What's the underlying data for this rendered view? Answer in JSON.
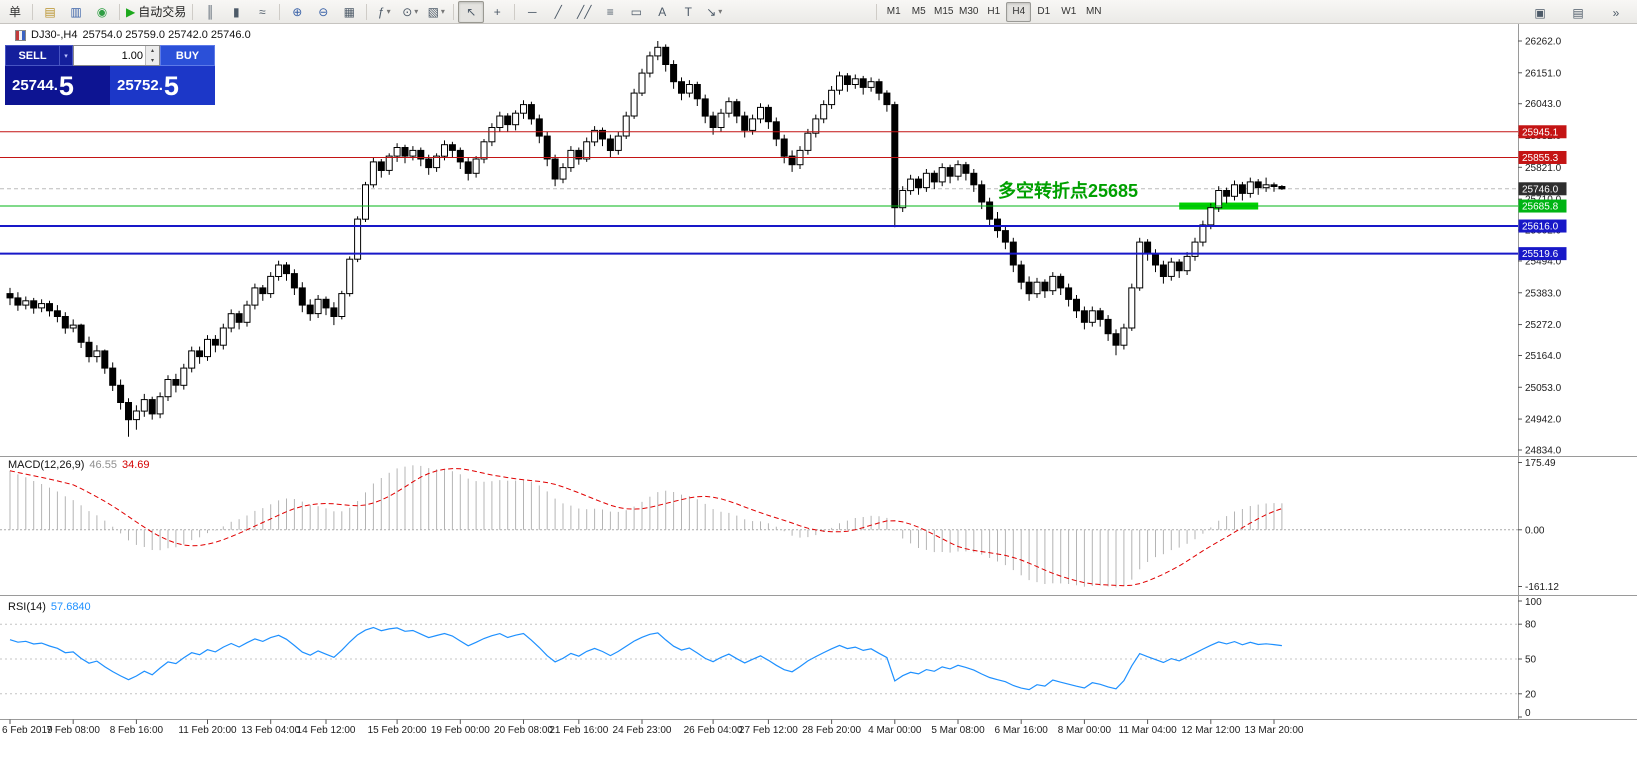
{
  "toolbar": {
    "groups": [
      [
        {
          "name": "new-order",
          "glyph": "单",
          "c": "#333333"
        }
      ],
      [
        {
          "name": "charts",
          "glyph": "▤",
          "c": "#b8912a"
        },
        {
          "name": "profiles",
          "glyph": "▥",
          "c": "#3a62a8"
        },
        {
          "name": "market-watch",
          "glyph": "◉",
          "c": "#2f9e44"
        }
      ],
      [
        {
          "name": "algo-trading",
          "glyph": "▶",
          "c": "#1ca81c",
          "label": "自动交易"
        }
      ],
      [
        {
          "name": "bar-chart",
          "glyph": "║"
        },
        {
          "name": "candlestick-chart",
          "glyph": "▮"
        },
        {
          "name": "line-chart",
          "glyph": "≈"
        }
      ],
      [
        {
          "name": "zoom-in",
          "glyph": "⊕",
          "c": "#3a62a8"
        },
        {
          "name": "zoom-out",
          "glyph": "⊖",
          "c": "#3a62a8"
        },
        {
          "name": "tile-windows",
          "glyph": "▦"
        }
      ],
      [
        {
          "name": "indicators",
          "glyph": "ƒ",
          "dd": true
        },
        {
          "name": "periods",
          "glyph": "⊙",
          "dd": true
        },
        {
          "name": "templates",
          "glyph": "▧",
          "dd": true
        }
      ],
      [
        {
          "name": "cursor",
          "glyph": "↖",
          "active": true
        },
        {
          "name": "crosshair",
          "glyph": "+"
        }
      ],
      [
        {
          "name": "horizontal-line",
          "glyph": "─"
        },
        {
          "name": "trendline",
          "glyph": "╱"
        },
        {
          "name": "equidistant-channel",
          "glyph": "╱╱"
        },
        {
          "name": "fibonacci",
          "glyph": "≡"
        },
        {
          "name": "shapes",
          "glyph": "▭"
        },
        {
          "name": "text",
          "glyph": "A"
        },
        {
          "name": "text-label",
          "glyph": "T"
        },
        {
          "name": "arrows",
          "glyph": "↘",
          "dd": true
        }
      ]
    ],
    "timeframes": [
      "M1",
      "M5",
      "M15",
      "M30",
      "H1",
      "H4",
      "D1",
      "W1",
      "MN"
    ],
    "active_timeframe": "H4",
    "window_controls": [
      {
        "name": "cascade-windows",
        "glyph": "▣"
      },
      {
        "name": "tile-horizontal",
        "glyph": "▤"
      },
      {
        "name": "toolbar-overflow",
        "glyph": "»"
      }
    ]
  },
  "chart": {
    "symbol": "DJ30-,H4",
    "ohlc_text": "25754.0 25759.0 25742.0 25746.0"
  },
  "one_click": {
    "sell_label": "SELL",
    "buy_label": "BUY",
    "volume": "1.00",
    "sell_price": "25744.",
    "sell_price_frac": "5",
    "buy_price": "25752.",
    "buy_price_frac": "5"
  },
  "annotation": {
    "text": "多空转折点25685",
    "color": "#00A000",
    "bar": {
      "from_bar": 148,
      "to_bar": 158,
      "price": 25685.8,
      "height": 7,
      "color": "#00D200"
    }
  },
  "levels": [
    {
      "label": "25945.1",
      "price": 25945.1,
      "color": "#C41414",
      "width": 1
    },
    {
      "label": "25855.3",
      "price": 25855.3,
      "color": "#C41414",
      "width": 1
    },
    {
      "label": "25685.8",
      "price": 25685.8,
      "color": "#00B414",
      "width": 1
    },
    {
      "label": "25616.0",
      "price": 25616.0,
      "color": "#1818C8",
      "width": 2
    },
    {
      "label": "25519.6",
      "price": 25519.6,
      "color": "#1818C8",
      "width": 2
    }
  ],
  "current_price": {
    "label": "25746.0",
    "value": 25746.0,
    "box_color": "#2e2e2e"
  },
  "price_scale": {
    "ticks": [
      "26262.0",
      "26151.0",
      "26043.0",
      "25932.0",
      "25821.0",
      "25710.0",
      "25602.0",
      "25494.0",
      "25383.0",
      "25272.0",
      "25164.0",
      "25053.0",
      "24942.0",
      "24834.0"
    ]
  },
  "chart_data": {
    "type": "candlestick",
    "symbol": "DJ30",
    "period": "H4",
    "title": "DJ30-,H4 25754.0 25759.0 25742.0 25746.0",
    "y_range": [
      24834,
      26262
    ],
    "candles": [
      [
        25380,
        25400,
        25340,
        25365
      ],
      [
        25365,
        25385,
        25320,
        25340
      ],
      [
        25340,
        25370,
        25325,
        25355
      ],
      [
        25355,
        25365,
        25310,
        25330
      ],
      [
        25330,
        25360,
        25315,
        25345
      ],
      [
        25345,
        25355,
        25300,
        25320
      ],
      [
        25320,
        25340,
        25280,
        25300
      ],
      [
        25300,
        25315,
        25240,
        25260
      ],
      [
        25260,
        25290,
        25245,
        25270
      ],
      [
        25270,
        25275,
        25190,
        25210
      ],
      [
        25210,
        25230,
        25140,
        25160
      ],
      [
        25160,
        25200,
        25140,
        25180
      ],
      [
        25180,
        25185,
        25100,
        25120
      ],
      [
        25120,
        25140,
        25040,
        25060
      ],
      [
        25060,
        25080,
        24975,
        25000
      ],
      [
        25000,
        25015,
        24880,
        24940
      ],
      [
        24940,
        24990,
        24905,
        24970
      ],
      [
        24970,
        25030,
        24950,
        25010
      ],
      [
        25010,
        25020,
        24940,
        24960
      ],
      [
        24960,
        25035,
        24945,
        25020
      ],
      [
        25020,
        25095,
        25005,
        25080
      ],
      [
        25080,
        25100,
        25035,
        25060
      ],
      [
        25060,
        25135,
        25045,
        25120
      ],
      [
        25120,
        25195,
        25105,
        25180
      ],
      [
        25180,
        25195,
        25135,
        25160
      ],
      [
        25160,
        25235,
        25145,
        25220
      ],
      [
        25220,
        25235,
        25175,
        25200
      ],
      [
        25200,
        25275,
        25185,
        25260
      ],
      [
        25260,
        25325,
        25245,
        25310
      ],
      [
        25310,
        25320,
        25255,
        25280
      ],
      [
        25280,
        25355,
        25265,
        25340
      ],
      [
        25340,
        25415,
        25325,
        25400
      ],
      [
        25400,
        25410,
        25355,
        25380
      ],
      [
        25380,
        25455,
        25365,
        25440
      ],
      [
        25440,
        25495,
        25425,
        25480
      ],
      [
        25480,
        25490,
        25425,
        25450
      ],
      [
        25450,
        25465,
        25375,
        25400
      ],
      [
        25400,
        25420,
        25315,
        25340
      ],
      [
        25340,
        25360,
        25285,
        25310
      ],
      [
        25310,
        25375,
        25295,
        25360
      ],
      [
        25360,
        25370,
        25305,
        25330
      ],
      [
        25330,
        25350,
        25270,
        25300
      ],
      [
        25300,
        25390,
        25290,
        25380
      ],
      [
        25380,
        25510,
        25370,
        25500
      ],
      [
        25500,
        25650,
        25490,
        25640
      ],
      [
        25640,
        25770,
        25630,
        25760
      ],
      [
        25760,
        25855,
        25750,
        25840
      ],
      [
        25840,
        25850,
        25785,
        25810
      ],
      [
        25810,
        25870,
        25795,
        25860
      ],
      [
        25860,
        25905,
        25840,
        25890
      ],
      [
        25890,
        25900,
        25835,
        25860
      ],
      [
        25860,
        25895,
        25845,
        25880
      ],
      [
        25880,
        25890,
        25825,
        25850
      ],
      [
        25850,
        25865,
        25795,
        25820
      ],
      [
        25820,
        25870,
        25805,
        25860
      ],
      [
        25860,
        25915,
        25845,
        25900
      ],
      [
        25900,
        25910,
        25855,
        25880
      ],
      [
        25880,
        25890,
        25815,
        25840
      ],
      [
        25840,
        25855,
        25775,
        25800
      ],
      [
        25800,
        25860,
        25785,
        25850
      ],
      [
        25850,
        25920,
        25835,
        25910
      ],
      [
        25910,
        25975,
        25895,
        25960
      ],
      [
        25960,
        26015,
        25945,
        26000
      ],
      [
        26000,
        26010,
        25945,
        25970
      ],
      [
        25970,
        26020,
        25950,
        26010
      ],
      [
        26010,
        26055,
        25990,
        26040
      ],
      [
        26040,
        26050,
        25970,
        25990
      ],
      [
        25990,
        26005,
        25905,
        25930
      ],
      [
        25930,
        25945,
        25825,
        25850
      ],
      [
        25850,
        25865,
        25755,
        25780
      ],
      [
        25780,
        25835,
        25765,
        25820
      ],
      [
        25820,
        25895,
        25805,
        25880
      ],
      [
        25880,
        25890,
        25830,
        25850
      ],
      [
        25850,
        25925,
        25840,
        25910
      ],
      [
        25910,
        25965,
        25895,
        25950
      ],
      [
        25950,
        25960,
        25895,
        25920
      ],
      [
        25920,
        25935,
        25855,
        25880
      ],
      [
        25880,
        25945,
        25865,
        25930
      ],
      [
        25930,
        26015,
        25920,
        26000
      ],
      [
        26000,
        26095,
        25990,
        26080
      ],
      [
        26080,
        26165,
        26070,
        26150
      ],
      [
        26150,
        26225,
        26135,
        26210
      ],
      [
        26210,
        26262,
        26195,
        26240
      ],
      [
        26240,
        26250,
        26155,
        26180
      ],
      [
        26180,
        26195,
        26095,
        26120
      ],
      [
        26120,
        26135,
        26055,
        26080
      ],
      [
        26080,
        26125,
        26065,
        26110
      ],
      [
        26110,
        26120,
        26035,
        26060
      ],
      [
        26060,
        26075,
        25975,
        26000
      ],
      [
        26000,
        26015,
        25935,
        25960
      ],
      [
        25960,
        26025,
        25945,
        26010
      ],
      [
        26010,
        26065,
        25995,
        26050
      ],
      [
        26050,
        26060,
        25975,
        26000
      ],
      [
        26000,
        26015,
        25925,
        25950
      ],
      [
        25950,
        26005,
        25935,
        25990
      ],
      [
        25990,
        26045,
        25975,
        26030
      ],
      [
        26030,
        26040,
        25955,
        25980
      ],
      [
        25980,
        25995,
        25895,
        25920
      ],
      [
        25920,
        25935,
        25835,
        25860
      ],
      [
        25860,
        25880,
        25805,
        25830
      ],
      [
        25830,
        25895,
        25815,
        25880
      ],
      [
        25880,
        25955,
        25865,
        25940
      ],
      [
        25940,
        26005,
        25925,
        25990
      ],
      [
        25990,
        26055,
        25975,
        26040
      ],
      [
        26040,
        26105,
        26025,
        26090
      ],
      [
        26090,
        26155,
        26075,
        26140
      ],
      [
        26140,
        26150,
        26085,
        26110
      ],
      [
        26110,
        26145,
        26095,
        26130
      ],
      [
        26130,
        26140,
        26075,
        26100
      ],
      [
        26100,
        26135,
        26085,
        26120
      ],
      [
        26120,
        26130,
        26055,
        26080
      ],
      [
        26080,
        26090,
        26015,
        26040
      ],
      [
        26040,
        26050,
        25612,
        25680
      ],
      [
        25680,
        25755,
        25665,
        25740
      ],
      [
        25740,
        25795,
        25725,
        25780
      ],
      [
        25780,
        25790,
        25725,
        25750
      ],
      [
        25750,
        25815,
        25735,
        25800
      ],
      [
        25800,
        25810,
        25745,
        25770
      ],
      [
        25770,
        25835,
        25755,
        25820
      ],
      [
        25820,
        25830,
        25765,
        25790
      ],
      [
        25790,
        25845,
        25775,
        25830
      ],
      [
        25830,
        25840,
        25775,
        25800
      ],
      [
        25800,
        25815,
        25735,
        25760
      ],
      [
        25760,
        25775,
        25675,
        25700
      ],
      [
        25700,
        25715,
        25615,
        25640
      ],
      [
        25640,
        25665,
        25575,
        25600
      ],
      [
        25600,
        25615,
        25535,
        25560
      ],
      [
        25560,
        25575,
        25455,
        25480
      ],
      [
        25480,
        25495,
        25395,
        25420
      ],
      [
        25420,
        25440,
        25355,
        25380
      ],
      [
        25380,
        25435,
        25365,
        25420
      ],
      [
        25420,
        25430,
        25365,
        25390
      ],
      [
        25390,
        25455,
        25375,
        25440
      ],
      [
        25440,
        25450,
        25375,
        25400
      ],
      [
        25400,
        25415,
        25335,
        25360
      ],
      [
        25360,
        25375,
        25295,
        25320
      ],
      [
        25320,
        25335,
        25255,
        25280
      ],
      [
        25280,
        25335,
        25265,
        25320
      ],
      [
        25320,
        25330,
        25265,
        25290
      ],
      [
        25290,
        25305,
        25215,
        25240
      ],
      [
        25240,
        25255,
        25165,
        25200
      ],
      [
        25200,
        25275,
        25185,
        25260
      ],
      [
        25260,
        25415,
        25250,
        25400
      ],
      [
        25400,
        25575,
        25390,
        25560
      ],
      [
        25560,
        25570,
        25495,
        25520
      ],
      [
        25520,
        25535,
        25455,
        25480
      ],
      [
        25480,
        25495,
        25415,
        25440
      ],
      [
        25440,
        25505,
        25425,
        25490
      ],
      [
        25490,
        25500,
        25435,
        25460
      ],
      [
        25460,
        25525,
        25445,
        25510
      ],
      [
        25510,
        25575,
        25495,
        25560
      ],
      [
        25560,
        25635,
        25545,
        25620
      ],
      [
        25620,
        25695,
        25605,
        25680
      ],
      [
        25680,
        25755,
        25665,
        25740
      ],
      [
        25740,
        25750,
        25695,
        25720
      ],
      [
        25720,
        25775,
        25705,
        25760
      ],
      [
        25760,
        25770,
        25705,
        25730
      ],
      [
        25730,
        25785,
        25715,
        25770
      ],
      [
        25770,
        25780,
        25725,
        25750
      ],
      [
        25750,
        25785,
        25735,
        25760
      ],
      [
        25760,
        25768,
        25736,
        25754
      ],
      [
        25754,
        25759,
        25742,
        25746
      ]
    ],
    "x_labels": [
      {
        "text": "6 Feb 2019",
        "bar": 0
      },
      {
        "text": "7 Feb 08:00",
        "bar": 8
      },
      {
        "text": "8 Feb 16:00",
        "bar": 16
      },
      {
        "text": "11 Feb 20:00",
        "bar": 25
      },
      {
        "text": "13 Feb 04:00",
        "bar": 33
      },
      {
        "text": "14 Feb 12:00",
        "bar": 40
      },
      {
        "text": "15 Feb 20:00",
        "bar": 49
      },
      {
        "text": "19 Feb 00:00",
        "bar": 57
      },
      {
        "text": "20 Feb 08:00",
        "bar": 65
      },
      {
        "text": "21 Feb 16:00",
        "bar": 72
      },
      {
        "text": "24 Feb 23:00",
        "bar": 80
      },
      {
        "text": "26 Feb 04:00",
        "bar": 89
      },
      {
        "text": "27 Feb 12:00",
        "bar": 96
      },
      {
        "text": "28 Feb 20:00",
        "bar": 104
      },
      {
        "text": "4 Mar 00:00",
        "bar": 112
      },
      {
        "text": "5 Mar 08:00",
        "bar": 120
      },
      {
        "text": "6 Mar 16:00",
        "bar": 128
      },
      {
        "text": "8 Mar 00:00",
        "bar": 136
      },
      {
        "text": "11 Mar 04:00",
        "bar": 144
      },
      {
        "text": "12 Mar 12:00",
        "bar": 152
      },
      {
        "text": "13 Mar 20:00",
        "bar": 160
      }
    ]
  },
  "macd": {
    "label": "MACD(12,26,9)",
    "value_main": "46.55",
    "value_signal": "34.69",
    "params": [
      12,
      26,
      9
    ],
    "scale_max": "175.49",
    "scale_zero": "0.00",
    "scale_min": "-161.12"
  },
  "rsi": {
    "label": "RSI(14)",
    "value": "57.6840",
    "period": 14,
    "levels": [
      100,
      80,
      50,
      20,
      0
    ]
  }
}
